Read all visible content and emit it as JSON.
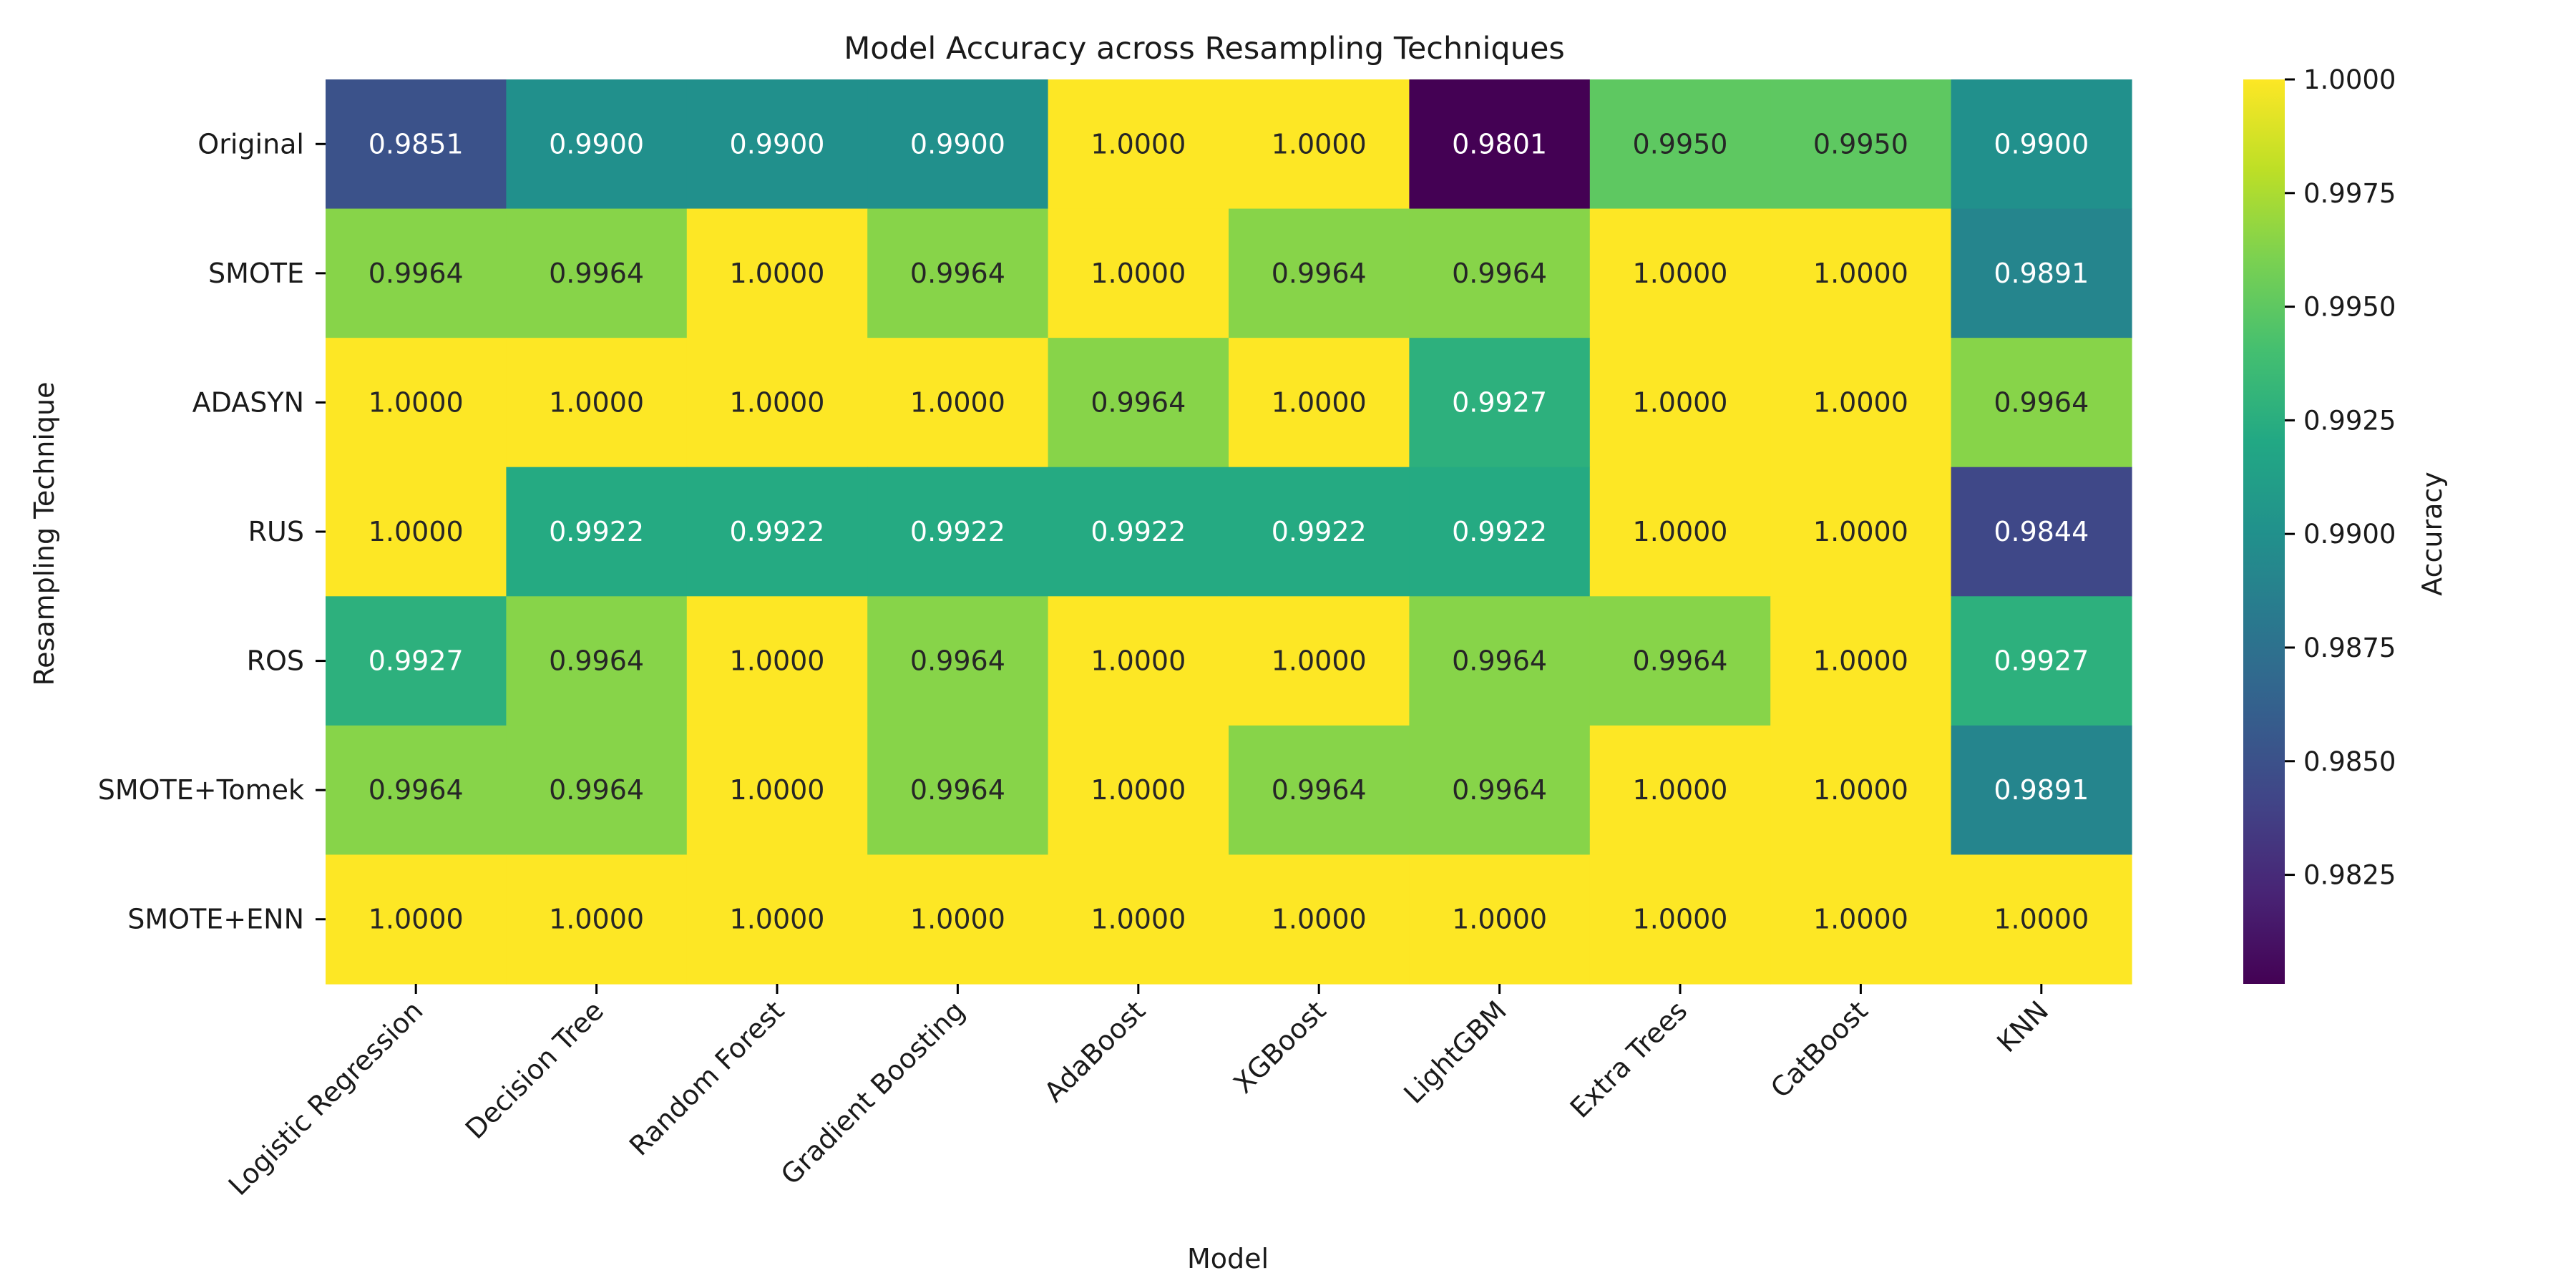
{
  "chart_data": {
    "type": "heatmap",
    "title": "Model Accuracy across Resampling Techniques",
    "xlabel": "Model",
    "ylabel": "Resampling Technique",
    "x_categories": [
      "Logistic Regression",
      "Decision Tree",
      "Random Forest",
      "Gradient Boosting",
      "AdaBoost",
      "XGBoost",
      "LightGBM",
      "Extra Trees",
      "CatBoost",
      "KNN"
    ],
    "y_categories": [
      "Original",
      "SMOTE",
      "ADASYN",
      "RUS",
      "ROS",
      "SMOTE+Tomek",
      "SMOTE+ENN"
    ],
    "values": [
      [
        0.9851,
        0.99,
        0.99,
        0.99,
        1.0,
        1.0,
        0.9801,
        0.995,
        0.995,
        0.99
      ],
      [
        0.9964,
        0.9964,
        1.0,
        0.9964,
        1.0,
        0.9964,
        0.9964,
        1.0,
        1.0,
        0.9891
      ],
      [
        1.0,
        1.0,
        1.0,
        1.0,
        0.9964,
        1.0,
        0.9927,
        1.0,
        1.0,
        0.9964
      ],
      [
        1.0,
        0.9922,
        0.9922,
        0.9922,
        0.9922,
        0.9922,
        0.9922,
        1.0,
        1.0,
        0.9844
      ],
      [
        0.9927,
        0.9964,
        1.0,
        0.9964,
        1.0,
        1.0,
        0.9964,
        0.9964,
        1.0,
        0.9927
      ],
      [
        0.9964,
        0.9964,
        1.0,
        0.9964,
        1.0,
        0.9964,
        0.9964,
        1.0,
        1.0,
        0.9891
      ],
      [
        1.0,
        1.0,
        1.0,
        1.0,
        1.0,
        1.0,
        1.0,
        1.0,
        1.0,
        1.0
      ]
    ],
    "value_format": "4 decimals",
    "colormap": "viridis",
    "colorbar": {
      "label": "Accuracy",
      "range": [
        0.9801,
        1.0
      ],
      "ticks": [
        0.9825,
        0.985,
        0.9875,
        0.99,
        0.9925,
        0.995,
        0.9975,
        1.0
      ],
      "tick_labels": [
        "0.9825",
        "0.9850",
        "0.9875",
        "0.9900",
        "0.9925",
        "0.9950",
        "0.9975",
        "1.0000"
      ]
    },
    "grid": false
  }
}
